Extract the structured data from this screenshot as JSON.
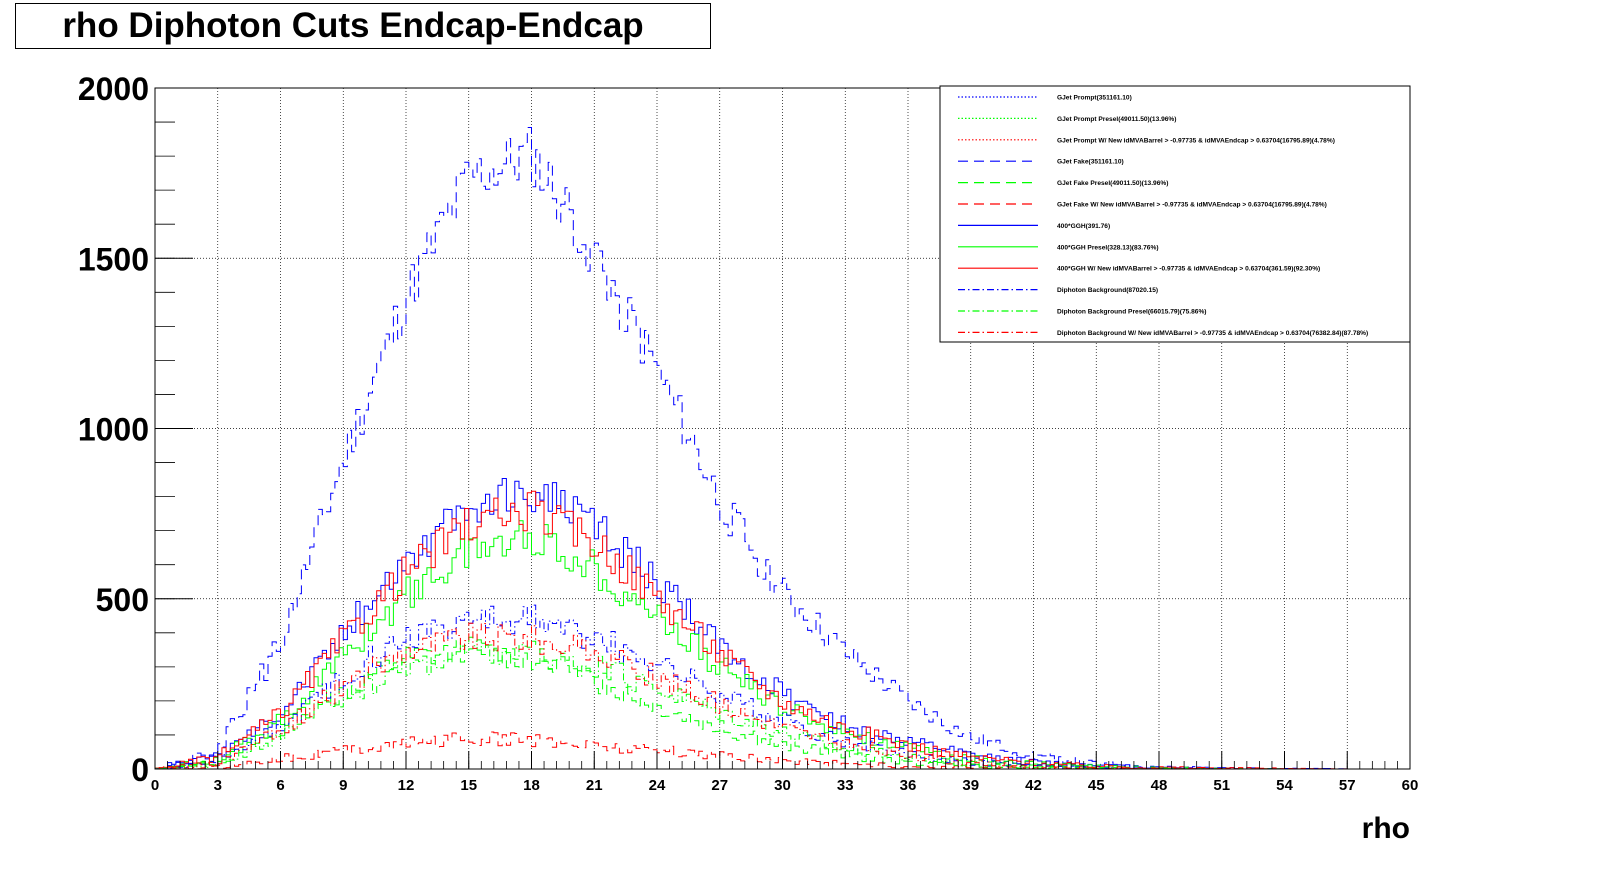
{
  "title": "rho Diphoton Cuts Endcap-Endcap",
  "chart_data": {
    "type": "line",
    "title": "rho Diphoton Cuts Endcap-Endcap",
    "xlabel": "rho",
    "ylabel": "",
    "xlim": [
      0,
      60
    ],
    "ylim": [
      0,
      2000
    ],
    "grid": true,
    "legend_position": "top-right",
    "x_ticks": [
      0,
      3,
      6,
      9,
      12,
      15,
      18,
      21,
      24,
      27,
      30,
      33,
      36,
      39,
      42,
      45,
      48,
      51,
      54,
      57,
      60
    ],
    "y_ticks": [
      0,
      500,
      1000,
      1500,
      2000
    ],
    "x": [
      0,
      3,
      6,
      9,
      12,
      15,
      18,
      21,
      24,
      27,
      30,
      33,
      36,
      39,
      42,
      45,
      48,
      51,
      54,
      57,
      60
    ],
    "series": [
      {
        "name": "GJet Prompt(351161.10)",
        "color": "#0000ff",
        "style": "dotted",
        "values": [
          0,
          0,
          0,
          0,
          0,
          0,
          0,
          0,
          0,
          0,
          0,
          0,
          0,
          0,
          0,
          0,
          0,
          0,
          0,
          0,
          0
        ]
      },
      {
        "name": "GJet Prompt Presel(49011.50)(13.96%)",
        "color": "#00ff00",
        "style": "dotted",
        "values": [
          0,
          0,
          0,
          0,
          0,
          0,
          0,
          0,
          0,
          0,
          0,
          0,
          0,
          0,
          0,
          0,
          0,
          0,
          0,
          0,
          0
        ]
      },
      {
        "name": "GJet Prompt W/ New idMVABarrel > -0.97735 & idMVAEndcap > 0.63704(16795.89)(4.78%)",
        "color": "#ff0000",
        "style": "dotted",
        "values": [
          0,
          0,
          0,
          0,
          0,
          0,
          0,
          0,
          0,
          0,
          0,
          0,
          0,
          0,
          0,
          0,
          0,
          0,
          0,
          0,
          0
        ]
      },
      {
        "name": "GJet Fake(351161.10)",
        "color": "#0000ff",
        "style": "dashed",
        "values": [
          0,
          50,
          370,
          900,
          1380,
          1730,
          1800,
          1520,
          1170,
          790,
          520,
          340,
          200,
          90,
          40,
          15,
          5,
          2,
          0,
          0,
          0
        ]
      },
      {
        "name": "GJet Fake Presel(49011.50)(13.96%)",
        "color": "#00ff00",
        "style": "dashed",
        "values": [
          0,
          20,
          110,
          230,
          330,
          350,
          330,
          260,
          190,
          120,
          70,
          40,
          20,
          8,
          3,
          1,
          0,
          0,
          0,
          0,
          0
        ]
      },
      {
        "name": "GJet Fake W/ New idMVABarrel > -0.97735 & idMVAEndcap > 0.63704(16795.89)(4.78%)",
        "color": "#ff0000",
        "style": "dashed",
        "values": [
          0,
          5,
          30,
          55,
          75,
          90,
          85,
          70,
          55,
          40,
          25,
          15,
          8,
          4,
          2,
          1,
          0,
          0,
          0,
          0,
          0
        ]
      },
      {
        "name": "400*GGH(391.76)",
        "color": "#0000ff",
        "style": "solid",
        "values": [
          0,
          40,
          170,
          400,
          620,
          760,
          820,
          720,
          550,
          360,
          220,
          130,
          80,
          40,
          20,
          10,
          5,
          3,
          1,
          0,
          0
        ]
      },
      {
        "name": "400*GGH Presel(328.13)(83.76%)",
        "color": "#00ff00",
        "style": "solid",
        "values": [
          0,
          30,
          140,
          330,
          510,
          640,
          690,
          590,
          450,
          300,
          180,
          110,
          60,
          30,
          15,
          7,
          3,
          1,
          0,
          0,
          0
        ]
      },
      {
        "name": "400*GGH W/ New idMVABarrel > -0.97735 & idMVAEndcap > 0.63704(361.59)(92.30%)",
        "color": "#ff0000",
        "style": "solid",
        "values": [
          0,
          35,
          160,
          380,
          580,
          720,
          760,
          670,
          510,
          340,
          200,
          120,
          70,
          35,
          18,
          8,
          4,
          2,
          1,
          0,
          0
        ]
      },
      {
        "name": "Diphoton Background(87020.15)",
        "color": "#0000ff",
        "style": "dashdot",
        "values": [
          0,
          20,
          120,
          270,
          390,
          440,
          440,
          390,
          310,
          220,
          140,
          80,
          45,
          20,
          8,
          3,
          1,
          0,
          0,
          0,
          0
        ]
      },
      {
        "name": "Diphoton Background Presel(66015.79)(75.86%)",
        "color": "#00ff00",
        "style": "dashdot",
        "values": [
          0,
          15,
          95,
          210,
          300,
          340,
          340,
          300,
          240,
          170,
          110,
          60,
          35,
          15,
          6,
          2,
          1,
          0,
          0,
          0,
          0
        ]
      },
      {
        "name": "Diphoton Background W/ New idMVABarrel > -0.97735 & idMVAEndcap > 0.63704(76382.84)(87.78%)",
        "color": "#ff0000",
        "style": "dashdot",
        "values": [
          0,
          18,
          110,
          240,
          350,
          390,
          385,
          340,
          270,
          190,
          125,
          70,
          40,
          18,
          7,
          2,
          1,
          0,
          0,
          0,
          0
        ]
      }
    ]
  }
}
